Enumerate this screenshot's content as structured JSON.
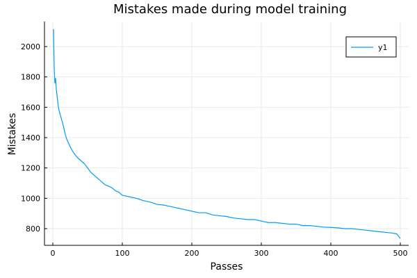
{
  "chart_data": {
    "type": "line",
    "title": "Mistakes made during model training",
    "xlabel": "Passes",
    "ylabel": "Mistakes",
    "xlim": [
      -12,
      512
    ],
    "ylim": [
      690,
      2165
    ],
    "xticks": [
      0,
      100,
      200,
      300,
      400,
      500
    ],
    "yticks": [
      800,
      1000,
      1200,
      1400,
      1600,
      1800,
      2000
    ],
    "grid": true,
    "legend": "top-right",
    "series": [
      {
        "name": "y1",
        "color": "#009af9",
        "x": [
          1,
          2,
          3,
          4,
          5,
          6,
          7,
          8,
          10,
          12,
          15,
          18,
          20,
          23,
          26,
          30,
          35,
          40,
          45,
          50,
          55,
          60,
          65,
          70,
          75,
          80,
          85,
          90,
          95,
          100,
          110,
          120,
          130,
          140,
          150,
          160,
          170,
          180,
          190,
          200,
          210,
          220,
          230,
          240,
          250,
          260,
          270,
          280,
          290,
          300,
          310,
          320,
          330,
          340,
          350,
          360,
          370,
          380,
          390,
          400,
          410,
          420,
          430,
          440,
          450,
          460,
          470,
          480,
          490,
          495,
          500
        ],
        "y": [
          2115,
          1850,
          1760,
          1790,
          1720,
          1680,
          1640,
          1600,
          1560,
          1530,
          1480,
          1420,
          1390,
          1360,
          1330,
          1300,
          1270,
          1250,
          1230,
          1200,
          1170,
          1150,
          1130,
          1110,
          1090,
          1080,
          1070,
          1050,
          1040,
          1020,
          1010,
          1000,
          985,
          975,
          960,
          955,
          945,
          935,
          925,
          915,
          905,
          905,
          890,
          885,
          880,
          870,
          865,
          860,
          860,
          850,
          840,
          840,
          835,
          830,
          830,
          820,
          820,
          815,
          810,
          808,
          805,
          800,
          800,
          795,
          790,
          785,
          780,
          775,
          770,
          765,
          735
        ]
      }
    ]
  }
}
